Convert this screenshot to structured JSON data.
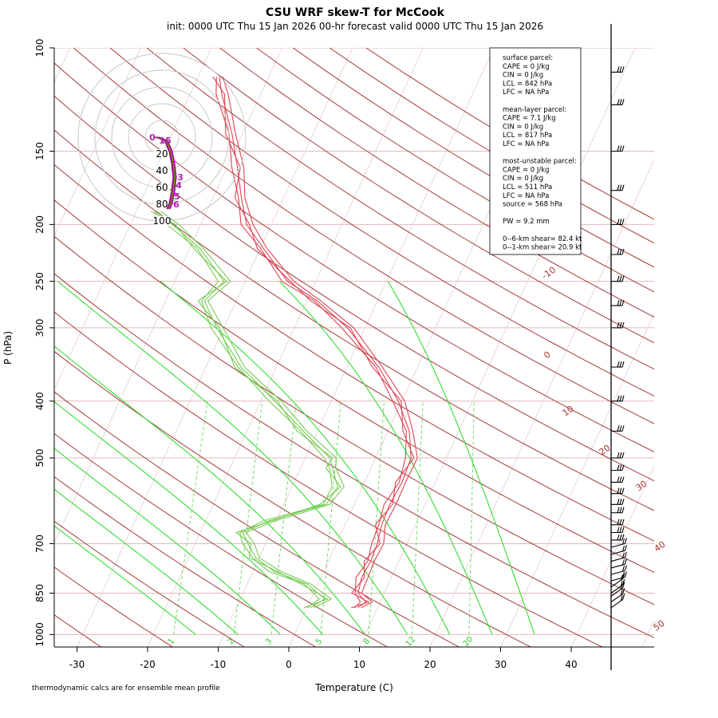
{
  "chart_data": {
    "type": "line",
    "title": "CSU WRF skew-T for McCook",
    "subtitle": "init: 0000 UTC Thu 15 Jan 2026     00-hr forecast valid 0000 UTC Thu 15 Jan 2026",
    "xlabel": "Temperature (C)",
    "ylabel": "P (hPa)",
    "x_ticks": [
      -30,
      -20,
      -10,
      0,
      10,
      20,
      30,
      40
    ],
    "y_ticks": [
      100,
      150,
      200,
      250,
      300,
      400,
      500,
      700,
      850,
      1000
    ],
    "y_scale": "log",
    "ylim": [
      1000,
      100
    ],
    "isotherm_labels": [
      -10,
      0,
      10,
      20,
      30,
      40,
      50
    ],
    "mixing_ratio_labels": [
      1,
      2,
      3,
      5,
      8,
      12,
      20
    ],
    "hodograph_ring_labels": [
      20,
      40,
      60,
      80,
      100
    ],
    "hodograph_point_labels": [
      "0",
      "1",
      "5",
      "3",
      "4",
      "5",
      "6"
    ],
    "info_box": [
      "surface parcel:",
      "CAPE = 0 J/kg",
      "CIN = 0 J/kg",
      "LCL = 842 hPa",
      "LFC = NA hPa",
      "",
      "mean-layer parcel:",
      "CAPE = 7.1 J/kg",
      "CIN = 0 J/kg",
      "LCL = 817 hPa",
      "LFC = NA hPa",
      "",
      "most-unstable parcel:",
      "CAPE = 0 J/kg",
      "CIN = 0 J/kg",
      "LCL = 511 hPa",
      "LFC = NA hPa",
      "source = 568 hPa",
      "",
      "PW =  9.2 mm",
      "",
      "0--6-km shear= 82.4 kt",
      "0--1-km shear= 20.9 kt"
    ],
    "footnote": "thermodynamic calcs are for ensemble mean profile",
    "series": [
      {
        "color": "#dd4455",
        "points": [
          [
            900,
            7.2
          ],
          [
            880,
            8.0
          ],
          [
            850,
            6.3
          ],
          [
            800,
            5.8
          ],
          [
            750,
            6.0
          ],
          [
            700,
            5.8
          ],
          [
            650,
            5.2
          ],
          [
            600,
            5.0
          ],
          [
            550,
            5.3
          ],
          [
            500,
            5.0
          ],
          [
            450,
            3.0
          ],
          [
            400,
            -0.5
          ],
          [
            350,
            -5.5
          ],
          [
            300,
            -12.5
          ],
          [
            270,
            -18.5
          ],
          [
            250,
            -24.0
          ],
          [
            220,
            -29.5
          ],
          [
            200,
            -33.5
          ],
          [
            180,
            -36.0
          ],
          [
            160,
            -38.5
          ],
          [
            140,
            -41.5
          ],
          [
            120,
            -45.5
          ],
          [
            112,
            -47.0
          ]
        ]
      },
      {
        "color": "#77cc55",
        "points": [
          [
            900,
            0.5
          ],
          [
            870,
            2.0
          ],
          [
            820,
            -1.5
          ],
          [
            780,
            -7.0
          ],
          [
            740,
            -10.5
          ],
          [
            700,
            -12.5
          ],
          [
            670,
            -14.0
          ],
          [
            640,
            -11.0
          ],
          [
            600,
            -4.0
          ],
          [
            560,
            -3.5
          ],
          [
            520,
            -5.5
          ],
          [
            500,
            -6.5
          ],
          [
            450,
            -12.0
          ],
          [
            400,
            -18.0
          ],
          [
            350,
            -25.0
          ],
          [
            300,
            -31.0
          ],
          [
            270,
            -34.5
          ],
          [
            250,
            -33.0
          ],
          [
            220,
            -38.5
          ],
          [
            200,
            -44.0
          ],
          [
            190,
            -47.0
          ]
        ]
      }
    ],
    "wind_barbs_hpa": [
      900,
      880,
      860,
      850,
      830,
      810,
      790,
      770,
      750,
      730,
      710,
      690,
      670,
      650,
      620,
      600,
      575,
      550,
      525,
      500,
      450,
      400,
      350,
      300,
      275,
      250,
      225,
      200,
      175,
      150,
      125,
      110
    ]
  }
}
